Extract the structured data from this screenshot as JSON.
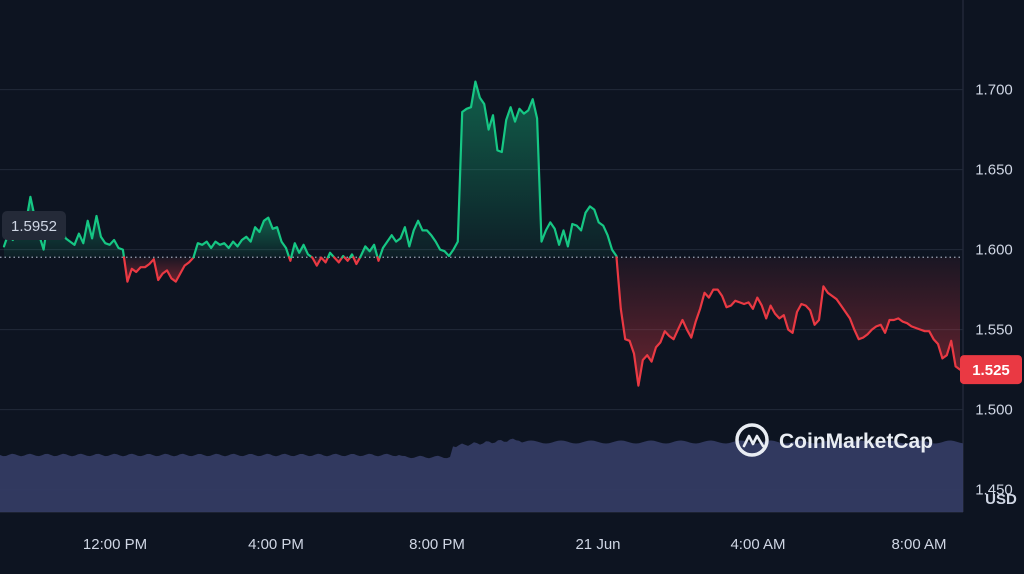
{
  "chart_data": {
    "type": "line",
    "x_labels": [
      "12:00 PM",
      "4:00 PM",
      "8:00 PM",
      "21 Jun",
      "4:00 AM",
      "8:00 AM"
    ],
    "y_ticks": [
      "1.450",
      "1.500",
      "1.550",
      "1.600",
      "1.650",
      "1.700"
    ],
    "ylim": [
      1.436,
      1.756
    ],
    "reference_price": 1.5952,
    "reference_label": "1.5952",
    "last_price": 1.525,
    "last_label": "1.525",
    "unit_label": "USD",
    "grid": true,
    "colors": {
      "up": "#16c784",
      "down": "#ea3943",
      "volume": "#343b63",
      "background": "#0d1421"
    },
    "series": [
      {
        "values": [
          1.602,
          1.61,
          1.606,
          1.615,
          1.608,
          1.617,
          1.633,
          1.62,
          1.609,
          1.6,
          1.619,
          1.617,
          1.611,
          1.614,
          1.607,
          1.605,
          1.603,
          1.61,
          1.604,
          1.618,
          1.607,
          1.621,
          1.608,
          1.604,
          1.603,
          1.606,
          1.601,
          1.6,
          1.58,
          1.588,
          1.586,
          1.589,
          1.589,
          1.591,
          1.594,
          1.581,
          1.585,
          1.587,
          1.582,
          1.58,
          1.585,
          1.59,
          1.592,
          1.595,
          1.604,
          1.603,
          1.605,
          1.601,
          1.605,
          1.603,
          1.604,
          1.601,
          1.605,
          1.602,
          1.606,
          1.608,
          1.605,
          1.614,
          1.611,
          1.618,
          1.62,
          1.613,
          1.614,
          1.605,
          1.601,
          1.593,
          1.604,
          1.598,
          1.603,
          1.597,
          1.595,
          1.59,
          1.595,
          1.592,
          1.598,
          1.595,
          1.592,
          1.596,
          1.593,
          1.597,
          1.591,
          1.596,
          1.602,
          1.599,
          1.603,
          1.593,
          1.601,
          1.605,
          1.609,
          1.605,
          1.607,
          1.614,
          1.602,
          1.612,
          1.618,
          1.612,
          1.612,
          1.609,
          1.605,
          1.6,
          1.599,
          1.596,
          1.6,
          1.605,
          1.686,
          1.688,
          1.689,
          1.705,
          1.695,
          1.691,
          1.675,
          1.684,
          1.662,
          1.661,
          1.681,
          1.689,
          1.68,
          1.688,
          1.685,
          1.687,
          1.694,
          1.682,
          1.605,
          1.612,
          1.617,
          1.613,
          1.603,
          1.612,
          1.602,
          1.616,
          1.615,
          1.612,
          1.623,
          1.627,
          1.625,
          1.617,
          1.615,
          1.609,
          1.6,
          1.596,
          1.563,
          1.544,
          1.543,
          1.535,
          1.515,
          1.531,
          1.534,
          1.53,
          1.539,
          1.542,
          1.549,
          1.546,
          1.544,
          1.55,
          1.556,
          1.55,
          1.545,
          1.555,
          1.563,
          1.573,
          1.57,
          1.575,
          1.575,
          1.571,
          1.564,
          1.565,
          1.568,
          1.567,
          1.566,
          1.567,
          1.563,
          1.57,
          1.565,
          1.557,
          1.565,
          1.56,
          1.557,
          1.559,
          1.55,
          1.548,
          1.561,
          1.566,
          1.565,
          1.562,
          1.553,
          1.556,
          1.577,
          1.573,
          1.571,
          1.569,
          1.565,
          1.561,
          1.557,
          1.55,
          1.544,
          1.545,
          1.547,
          1.55,
          1.552,
          1.553,
          1.548,
          1.556,
          1.556,
          1.557,
          1.555,
          1.554,
          1.552,
          1.551,
          1.55,
          1.549,
          1.549,
          1.544,
          1.541,
          1.532,
          1.534,
          1.543,
          1.527,
          1.525
        ]
      }
    ]
  },
  "branding": {
    "name": "CoinMarketCap",
    "icon": "coinmarketcap-logo-icon"
  }
}
